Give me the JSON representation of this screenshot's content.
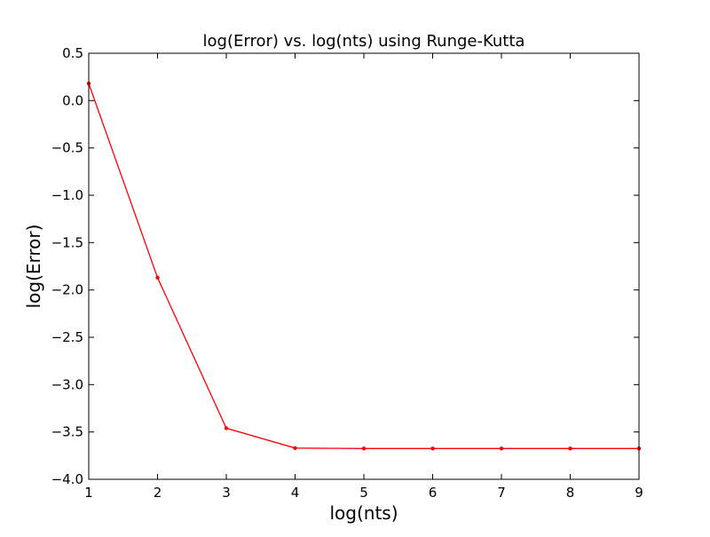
{
  "chart_data": {
    "type": "line",
    "title": "log(Error) vs. log(nts) using Runge-Kutta",
    "xlabel": "log(nts)",
    "ylabel": "log(Error)",
    "xlim": [
      1,
      9
    ],
    "ylim": [
      -4.0,
      0.5
    ],
    "xticks": [
      1,
      2,
      3,
      4,
      5,
      6,
      7,
      8,
      9
    ],
    "xtick_labels": [
      "1",
      "2",
      "3",
      "4",
      "5",
      "6",
      "7",
      "8",
      "9"
    ],
    "yticks": [
      0.5,
      0.0,
      -0.5,
      -1.0,
      -1.5,
      -2.0,
      -2.5,
      -3.0,
      -3.5,
      -4.0
    ],
    "ytick_labels": [
      "0.5",
      "0.0",
      "−0.5",
      "−1.0",
      "−1.5",
      "−2.0",
      "−2.5",
      "−3.0",
      "−3.5",
      "−4.0"
    ],
    "grid": false,
    "series": [
      {
        "color": "#ff0000",
        "marker": "dot",
        "x": [
          1,
          2,
          3,
          4,
          5,
          6,
          7,
          8,
          9
        ],
        "y": [
          0.18,
          -1.87,
          -3.46,
          -3.67,
          -3.675,
          -3.675,
          -3.675,
          -3.675,
          -3.675
        ]
      }
    ]
  }
}
